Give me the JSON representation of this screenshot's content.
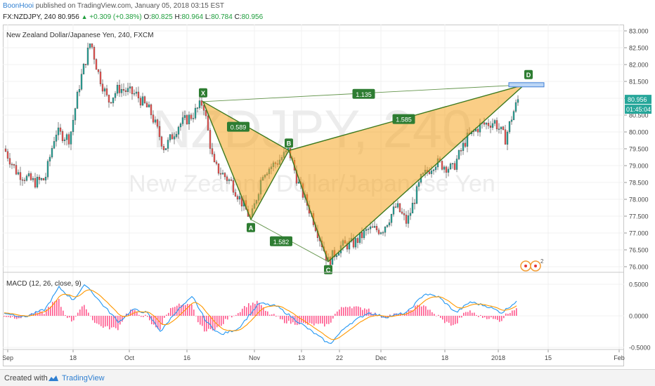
{
  "header": {
    "author": "BoonHooi",
    "published_text": "published on TradingView.com, January 05, 2018 03:15 EST",
    "symbol": "FX:NZDJPY, 240",
    "last": "80.956",
    "change": "+0.309 (+0.38%)",
    "open_label": "O:",
    "open": "80.825",
    "high_label": "H:",
    "high": "80.964",
    "low_label": "L:",
    "low": "80.784",
    "close_label": "C:",
    "close": "80.956"
  },
  "chart": {
    "instrument_title": "New Zealand Dollar/Japanese Yen, 240, FXCM",
    "watermark_big": "NZDJPY, 240",
    "watermark_small": "New Zealand Dollar/Japanese Yen",
    "price_ticks": [
      "83.000",
      "82.500",
      "82.000",
      "81.500",
      "81.000",
      "80.500",
      "80.000",
      "79.500",
      "79.000",
      "78.500",
      "78.000",
      "77.500",
      "77.000",
      "76.500",
      "76.000"
    ],
    "price_tick_values": [
      83.0,
      82.5,
      82.0,
      81.5,
      81.0,
      80.5,
      80.0,
      79.5,
      79.0,
      78.5,
      78.0,
      77.5,
      77.0,
      76.5,
      76.0
    ],
    "last_price_label": "80.956",
    "countdown_label": "01:45:04",
    "time_ticks": [
      "Sep",
      "18",
      "Oct",
      "16",
      "Nov",
      "13",
      "22",
      "Dec",
      "18",
      "2018",
      "15",
      "Feb"
    ],
    "pattern_points": [
      {
        "label": "X",
        "price": 80.9
      },
      {
        "label": "A",
        "price": 77.4
      },
      {
        "label": "B",
        "price": 79.45
      },
      {
        "label": "C",
        "price": 76.15
      },
      {
        "label": "D",
        "price": 81.4
      }
    ],
    "ratios": [
      {
        "label": "0.589"
      },
      {
        "label": "1.582"
      },
      {
        "label": "1.585"
      },
      {
        "label": "1.135"
      }
    ],
    "macd_title": "MACD (12, 26, close, 9)",
    "macd_ticks": [
      "0.5000",
      "0.0000",
      "-0.5000"
    ],
    "macd_tick_values": [
      0.5,
      0.0,
      -0.5
    ],
    "events_badge": "2",
    "colors": {
      "up": "#26a69a",
      "down": "#ef5350",
      "pattern_fill": "#f5a623",
      "pattern_line": "#3d7a1f",
      "macd_line": "#2196f3",
      "signal_line": "#ff9800",
      "histogram": "#ff5a8f"
    }
  },
  "footer": {
    "created_with": "Created with",
    "brand": "TradingView"
  }
}
